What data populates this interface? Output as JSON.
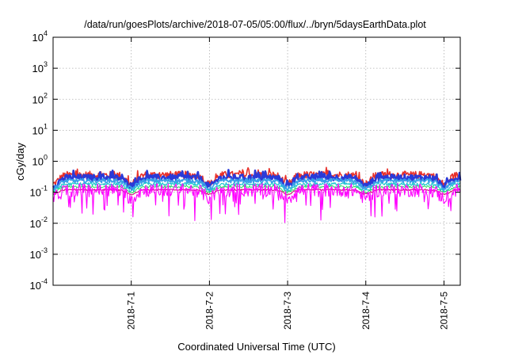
{
  "chart_data": {
    "type": "line",
    "title": "/data/run/goesPlots/archive/2018-07-05/05:00/flux/../bryn/5daysEarthData.plot",
    "xlabel": "Coordinated Universal Time (UTC)",
    "ylabel": "cGy/day",
    "y_scale": "log",
    "ylim": [
      0.0001,
      10000
    ],
    "xlim": [
      "2018-06-30T00:00",
      "2018-07-05T05:00"
    ],
    "grid": true,
    "legend": "none",
    "y_ticks": [
      {
        "value": 0.0001,
        "base": "10",
        "exp": "-4"
      },
      {
        "value": 0.001,
        "base": "10",
        "exp": "-3"
      },
      {
        "value": 0.01,
        "base": "10",
        "exp": "-2"
      },
      {
        "value": 0.1,
        "base": "10",
        "exp": "-1"
      },
      {
        "value": 1,
        "base": "10",
        "exp": "0"
      },
      {
        "value": 10,
        "base": "10",
        "exp": "1"
      },
      {
        "value": 100,
        "base": "10",
        "exp": "2"
      },
      {
        "value": 1000,
        "base": "10",
        "exp": "3"
      },
      {
        "value": 10000,
        "base": "10",
        "exp": "4"
      }
    ],
    "x_ticks": [
      {
        "value": "2018-07-01T00:00",
        "label": "2018-7-1"
      },
      {
        "value": "2018-07-02T00:00",
        "label": "2018-7-2"
      },
      {
        "value": "2018-07-03T00:00",
        "label": "2018-7-3"
      },
      {
        "value": "2018-07-04T00:00",
        "label": "2018-7-4"
      },
      {
        "value": "2018-07-05T00:00",
        "label": "2018-7-5"
      }
    ],
    "series": [
      {
        "color": "#e8302a",
        "level": 0.3,
        "amp": 0.32,
        "noise": 0.12,
        "width": 1.6
      },
      {
        "color": "#2a3ad8",
        "level": 0.25,
        "amp": 0.3,
        "noise": 0.1,
        "width": 2.6
      },
      {
        "color": "#3aa0e8",
        "level": 0.2,
        "amp": 0.28,
        "noise": 0.07,
        "width": 1.8
      },
      {
        "color": "#20c8d0",
        "level": 0.16,
        "amp": 0.24,
        "noise": 0.05,
        "width": 1.2
      },
      {
        "color": "#20e060",
        "level": 0.135,
        "amp": 0.2,
        "noise": 0.035,
        "width": 1.0
      },
      {
        "color": "#d02080",
        "level": 0.11,
        "amp": 0.16,
        "noise": 0.025,
        "width": 1.2
      },
      {
        "color": "#ff00ff",
        "level": 0.1,
        "amp": 0.28,
        "noise": 0.22,
        "width": 1.1
      }
    ]
  }
}
